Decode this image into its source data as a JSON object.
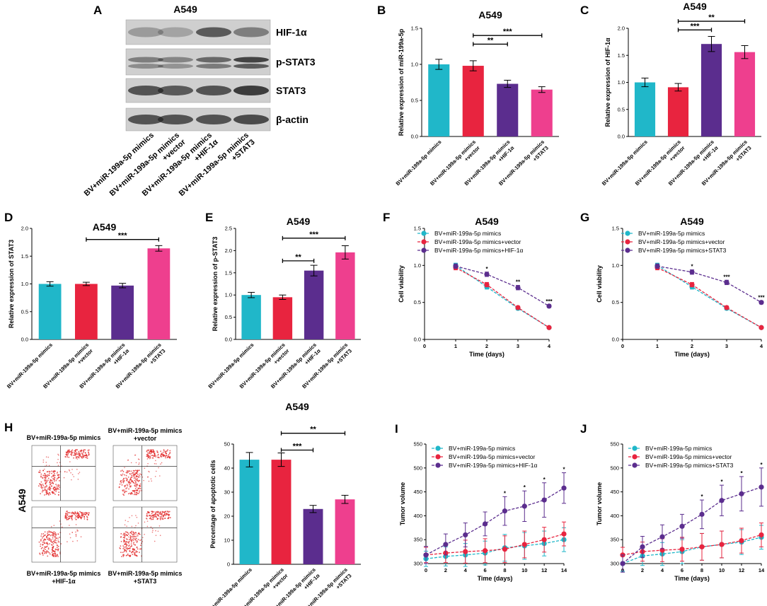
{
  "colors": {
    "teal": "#20b7c9",
    "red": "#e8243f",
    "purple": "#5b2d8e",
    "pink": "#ee3f8e",
    "black": "#000000",
    "flow_dot": "#e02020"
  },
  "panel_a": {
    "letter": "A",
    "title": "A549",
    "bands": [
      "HIF-1α",
      "p-STAT3",
      "STAT3",
      "β-actin"
    ],
    "lanes": [
      "BV+miR-199a-5p mimics",
      "BV+miR-199a-5p mimics",
      "+vector",
      "BV+miR-199a-5p mimics",
      "+HIF-1α",
      "BV+miR-199a-5p mimics",
      "+STAT3"
    ]
  },
  "chart_data": [
    {
      "id": "B",
      "type": "bar",
      "title": "A549",
      "ylabel": "Relative expression of miR-199a-5p",
      "ylim": [
        0,
        1.5
      ],
      "yticks": [
        "0.0",
        "0.5",
        "1.0",
        "1.5"
      ],
      "ytickvals": [
        0,
        0.5,
        1.0,
        1.5
      ],
      "categories": [
        [
          "BV+miR-199a-5p mimics"
        ],
        [
          "BV+miR-199a-5p mimics",
          "+vector"
        ],
        [
          "BV+miR-199a-5p mimics",
          "+HIF-1α"
        ],
        [
          "BV+miR-199a-5p mimics",
          "+STAT3"
        ]
      ],
      "values": [
        1.0,
        0.98,
        0.73,
        0.65
      ],
      "errors": [
        0.07,
        0.07,
        0.05,
        0.04
      ],
      "significance": [
        {
          "from": 1,
          "to": 2,
          "label": "**",
          "y": 1.28
        },
        {
          "from": 1,
          "to": 3,
          "label": "***",
          "y": 1.4
        }
      ]
    },
    {
      "id": "C",
      "type": "bar",
      "title": "A549",
      "ylabel": "Relative expression of HIF-1α",
      "ylim": [
        0,
        2.0
      ],
      "yticks": [
        "0.0",
        "0.5",
        "1.0",
        "1.5",
        "2.0"
      ],
      "ytickvals": [
        0,
        0.5,
        1.0,
        1.5,
        2.0
      ],
      "categories": [
        [
          "BV+miR-199a-5p mimics"
        ],
        [
          "BV+miR-199a-5p mimics",
          "+vector"
        ],
        [
          "BV+miR-199a-5p mimics",
          "+HIF-1α"
        ],
        [
          "BV+miR-199a-5p mimics",
          "+STAT3"
        ]
      ],
      "values": [
        1.0,
        0.91,
        1.71,
        1.56
      ],
      "errors": [
        0.08,
        0.07,
        0.14,
        0.12
      ],
      "significance": [
        {
          "from": 1,
          "to": 2,
          "label": "***",
          "y": 1.97
        },
        {
          "from": 1,
          "to": 3,
          "label": "**",
          "y": 2.13
        }
      ]
    },
    {
      "id": "D",
      "type": "bar",
      "title": "A549",
      "ylabel": "Relative expression of STAT3",
      "ylim": [
        0,
        2.0
      ],
      "yticks": [
        "0.0",
        "0.5",
        "1.0",
        "1.5",
        "2.0"
      ],
      "ytickvals": [
        0,
        0.5,
        1.0,
        1.5,
        2.0
      ],
      "categories": [
        [
          "BV+miR-199a-5p mimics"
        ],
        [
          "BV+miR-199a-5p mimics",
          "+vector"
        ],
        [
          "BV+miR-199a-5p mimics",
          "+HIF-1α"
        ],
        [
          "BV+miR-199a-5p mimics",
          "+STAT3"
        ]
      ],
      "values": [
        1.0,
        1.0,
        0.97,
        1.64
      ],
      "errors": [
        0.04,
        0.03,
        0.04,
        0.05
      ],
      "significance": [
        {
          "from": 1,
          "to": 3,
          "label": "***",
          "y": 1.8
        }
      ]
    },
    {
      "id": "E",
      "type": "bar",
      "title": "A549",
      "ylabel": "Relative expression of p-STAT3",
      "ylim": [
        0,
        2.5
      ],
      "yticks": [
        "0.0",
        "0.5",
        "1.0",
        "1.5",
        "2.0",
        "2.5"
      ],
      "ytickvals": [
        0,
        0.5,
        1.0,
        1.5,
        2.0,
        2.5
      ],
      "categories": [
        [
          "BV+miR-199a-5p mimics"
        ],
        [
          "BV+miR-199a-5p mimics",
          "+vector"
        ],
        [
          "BV+miR-199a-5p mimics",
          "+HIF-1α"
        ],
        [
          "BV+miR-199a-5p mimics",
          "+STAT3"
        ]
      ],
      "values": [
        1.0,
        0.95,
        1.55,
        1.96
      ],
      "errors": [
        0.06,
        0.05,
        0.12,
        0.15
      ],
      "significance": [
        {
          "from": 1,
          "to": 2,
          "label": "**",
          "y": 1.77
        },
        {
          "from": 1,
          "to": 3,
          "label": "***",
          "y": 2.28
        }
      ]
    },
    {
      "id": "F",
      "type": "line",
      "title": "A549",
      "xlabel": "Time (days)",
      "ylabel": "Cell viability",
      "xlim": [
        0,
        4
      ],
      "ylim": [
        0,
        1.5
      ],
      "xticks": [
        "0",
        "1",
        "2",
        "3",
        "4"
      ],
      "xtickvals": [
        0,
        1,
        2,
        3,
        4
      ],
      "yticks": [
        "0.0",
        "0.5",
        "1.0",
        "1.5"
      ],
      "ytickvals": [
        0,
        0.5,
        1.0,
        1.5
      ],
      "x": [
        1,
        2,
        3,
        4
      ],
      "series": [
        {
          "name": "BV+miR-199a-5p mimics",
          "color": "teal",
          "values": [
            1.0,
            0.71,
            0.42,
            0.16
          ],
          "errors": [
            0.03,
            0.03,
            0.02,
            0.01
          ]
        },
        {
          "name": "BV+miR-199a-5p mimics+vector",
          "color": "red",
          "values": [
            0.97,
            0.74,
            0.43,
            0.16
          ],
          "errors": [
            0.03,
            0.03,
            0.02,
            0.01
          ]
        },
        {
          "name": "BV+miR-199a-5p mimics+HIF-1α",
          "color": "purple",
          "values": [
            0.99,
            0.88,
            0.7,
            0.45
          ],
          "errors": [
            0.03,
            0.03,
            0.03,
            0.02
          ],
          "marks": [
            "",
            "*",
            "**",
            "***"
          ]
        }
      ]
    },
    {
      "id": "G",
      "type": "line",
      "title": "A549",
      "xlabel": "Time (days)",
      "ylabel": "Cell viability",
      "xlim": [
        0,
        4
      ],
      "ylim": [
        0,
        1.5
      ],
      "xticks": [
        "0",
        "1",
        "2",
        "3",
        "4"
      ],
      "xtickvals": [
        0,
        1,
        2,
        3,
        4
      ],
      "yticks": [
        "0.0",
        "0.5",
        "1.0",
        "1.5"
      ],
      "ytickvals": [
        0,
        0.5,
        1.0,
        1.5
      ],
      "x": [
        1,
        2,
        3,
        4
      ],
      "series": [
        {
          "name": "BV+miR-199a-5p mimics",
          "color": "teal",
          "values": [
            1.0,
            0.71,
            0.42,
            0.16
          ],
          "errors": [
            0.03,
            0.03,
            0.02,
            0.01
          ]
        },
        {
          "name": "BV+miR-199a-5p mimics+vector",
          "color": "red",
          "values": [
            0.97,
            0.74,
            0.43,
            0.16
          ],
          "errors": [
            0.03,
            0.03,
            0.02,
            0.01
          ]
        },
        {
          "name": "BV+miR-199a-5p mimics+STAT3",
          "color": "purple",
          "values": [
            0.99,
            0.91,
            0.77,
            0.5
          ],
          "errors": [
            0.03,
            0.03,
            0.03,
            0.02
          ],
          "marks": [
            "",
            "*",
            "***",
            "***"
          ]
        }
      ]
    },
    {
      "id": "H",
      "type": "bar",
      "title": "A549",
      "ylabel": "Percentage of apoptotic cells",
      "ylim": [
        0,
        50
      ],
      "yticks": [
        "0",
        "10",
        "20",
        "30",
        "40",
        "50"
      ],
      "ytickvals": [
        0,
        10,
        20,
        30,
        40,
        50
      ],
      "categories": [
        [
          "BV+miR-199a-5p mimics"
        ],
        [
          "BV+miR-199a-5p mimics",
          "+vector"
        ],
        [
          "BV+miR-199a-5p mimics",
          "+HIF-1α"
        ],
        [
          "BV+miR-199a-5p mimics",
          "+STAT3"
        ]
      ],
      "values": [
        43.5,
        43.5,
        23.0,
        27.0
      ],
      "errors": [
        3.0,
        2.8,
        1.5,
        1.7
      ],
      "significance": [
        {
          "from": 1,
          "to": 2,
          "label": "***",
          "y": 47.5
        },
        {
          "from": 1,
          "to": 3,
          "label": "**",
          "y": 54.5
        }
      ]
    },
    {
      "id": "I",
      "type": "line",
      "title": "",
      "xlabel": "Time (days)",
      "ylabel": "Tumor volume",
      "xlim": [
        0,
        14
      ],
      "ylim": [
        300,
        550
      ],
      "xticks": [
        "0",
        "2",
        "4",
        "6",
        "8",
        "10",
        "12",
        "14"
      ],
      "xtickvals": [
        0,
        2,
        4,
        6,
        8,
        10,
        12,
        14
      ],
      "yticks": [
        "300",
        "350",
        "400",
        "450",
        "500",
        "550"
      ],
      "ytickvals": [
        300,
        350,
        400,
        450,
        500,
        550
      ],
      "x": [
        0,
        2,
        4,
        6,
        8,
        10,
        12,
        14
      ],
      "series": [
        {
          "name": "BV+miR-199a-5p mimics",
          "color": "teal",
          "values": [
            310,
            315,
            318,
            322,
            333,
            337,
            342,
            350
          ],
          "errors": [
            16,
            20,
            24,
            25,
            28,
            28,
            26,
            25
          ]
        },
        {
          "name": "BV+miR-199a-5p mimics+vector",
          "color": "red",
          "values": [
            318,
            322,
            325,
            327,
            330,
            340,
            350,
            362
          ],
          "errors": [
            16,
            20,
            24,
            25,
            28,
            28,
            26,
            25
          ]
        },
        {
          "name": "BV+miR-199a-5p mimics+HIF-1α",
          "color": "purple",
          "values": [
            318,
            340,
            360,
            383,
            410,
            420,
            433,
            458
          ],
          "errors": [
            18,
            22,
            25,
            25,
            30,
            32,
            36,
            32
          ],
          "marks": [
            "",
            "",
            "",
            "",
            "*",
            "*",
            "*",
            "*"
          ]
        }
      ]
    },
    {
      "id": "J",
      "type": "line",
      "title": "",
      "xlabel": "Time (days)",
      "ylabel": "Tumor volume",
      "xlim": [
        0,
        14
      ],
      "ylim": [
        300,
        550
      ],
      "xticks": [
        "0",
        "2",
        "4",
        "6",
        "8",
        "10",
        "12",
        "14"
      ],
      "xtickvals": [
        0,
        2,
        4,
        6,
        8,
        10,
        12,
        14
      ],
      "yticks": [
        "300",
        "350",
        "400",
        "450",
        "500",
        "550"
      ],
      "ytickvals": [
        300,
        350,
        400,
        450,
        500,
        550
      ],
      "x": [
        0,
        2,
        4,
        6,
        8,
        10,
        12,
        14
      ],
      "series": [
        {
          "name": "BV+miR-199a-5p mimics",
          "color": "teal",
          "values": [
            300,
            316,
            320,
            325,
            335,
            340,
            345,
            355
          ],
          "errors": [
            16,
            20,
            24,
            25,
            28,
            28,
            26,
            25
          ]
        },
        {
          "name": "BV+miR-199a-5p mimics+vector",
          "color": "red",
          "values": [
            318,
            325,
            328,
            330,
            335,
            340,
            348,
            360
          ],
          "errors": [
            16,
            20,
            24,
            25,
            28,
            28,
            26,
            25
          ]
        },
        {
          "name": "BV+miR-199a-5p mimics+STAT3",
          "color": "purple",
          "values": [
            300,
            335,
            356,
            378,
            403,
            432,
            446,
            460
          ],
          "errors": [
            18,
            22,
            25,
            25,
            30,
            32,
            36,
            40
          ],
          "marks": [
            "",
            "",
            "",
            "",
            "*",
            "*",
            "*",
            "*"
          ]
        }
      ]
    }
  ],
  "panel_h_flow": {
    "row_label": "A549",
    "captions": [
      [
        "BV+miR-199a-5p mimics"
      ],
      [
        "BV+miR-199a-5p mimics",
        "+vector"
      ],
      [
        "BV+miR-199a-5p mimics",
        "+HIF-1α"
      ],
      [
        "BV+miR-199a-5p mimics",
        "+STAT3"
      ]
    ]
  }
}
